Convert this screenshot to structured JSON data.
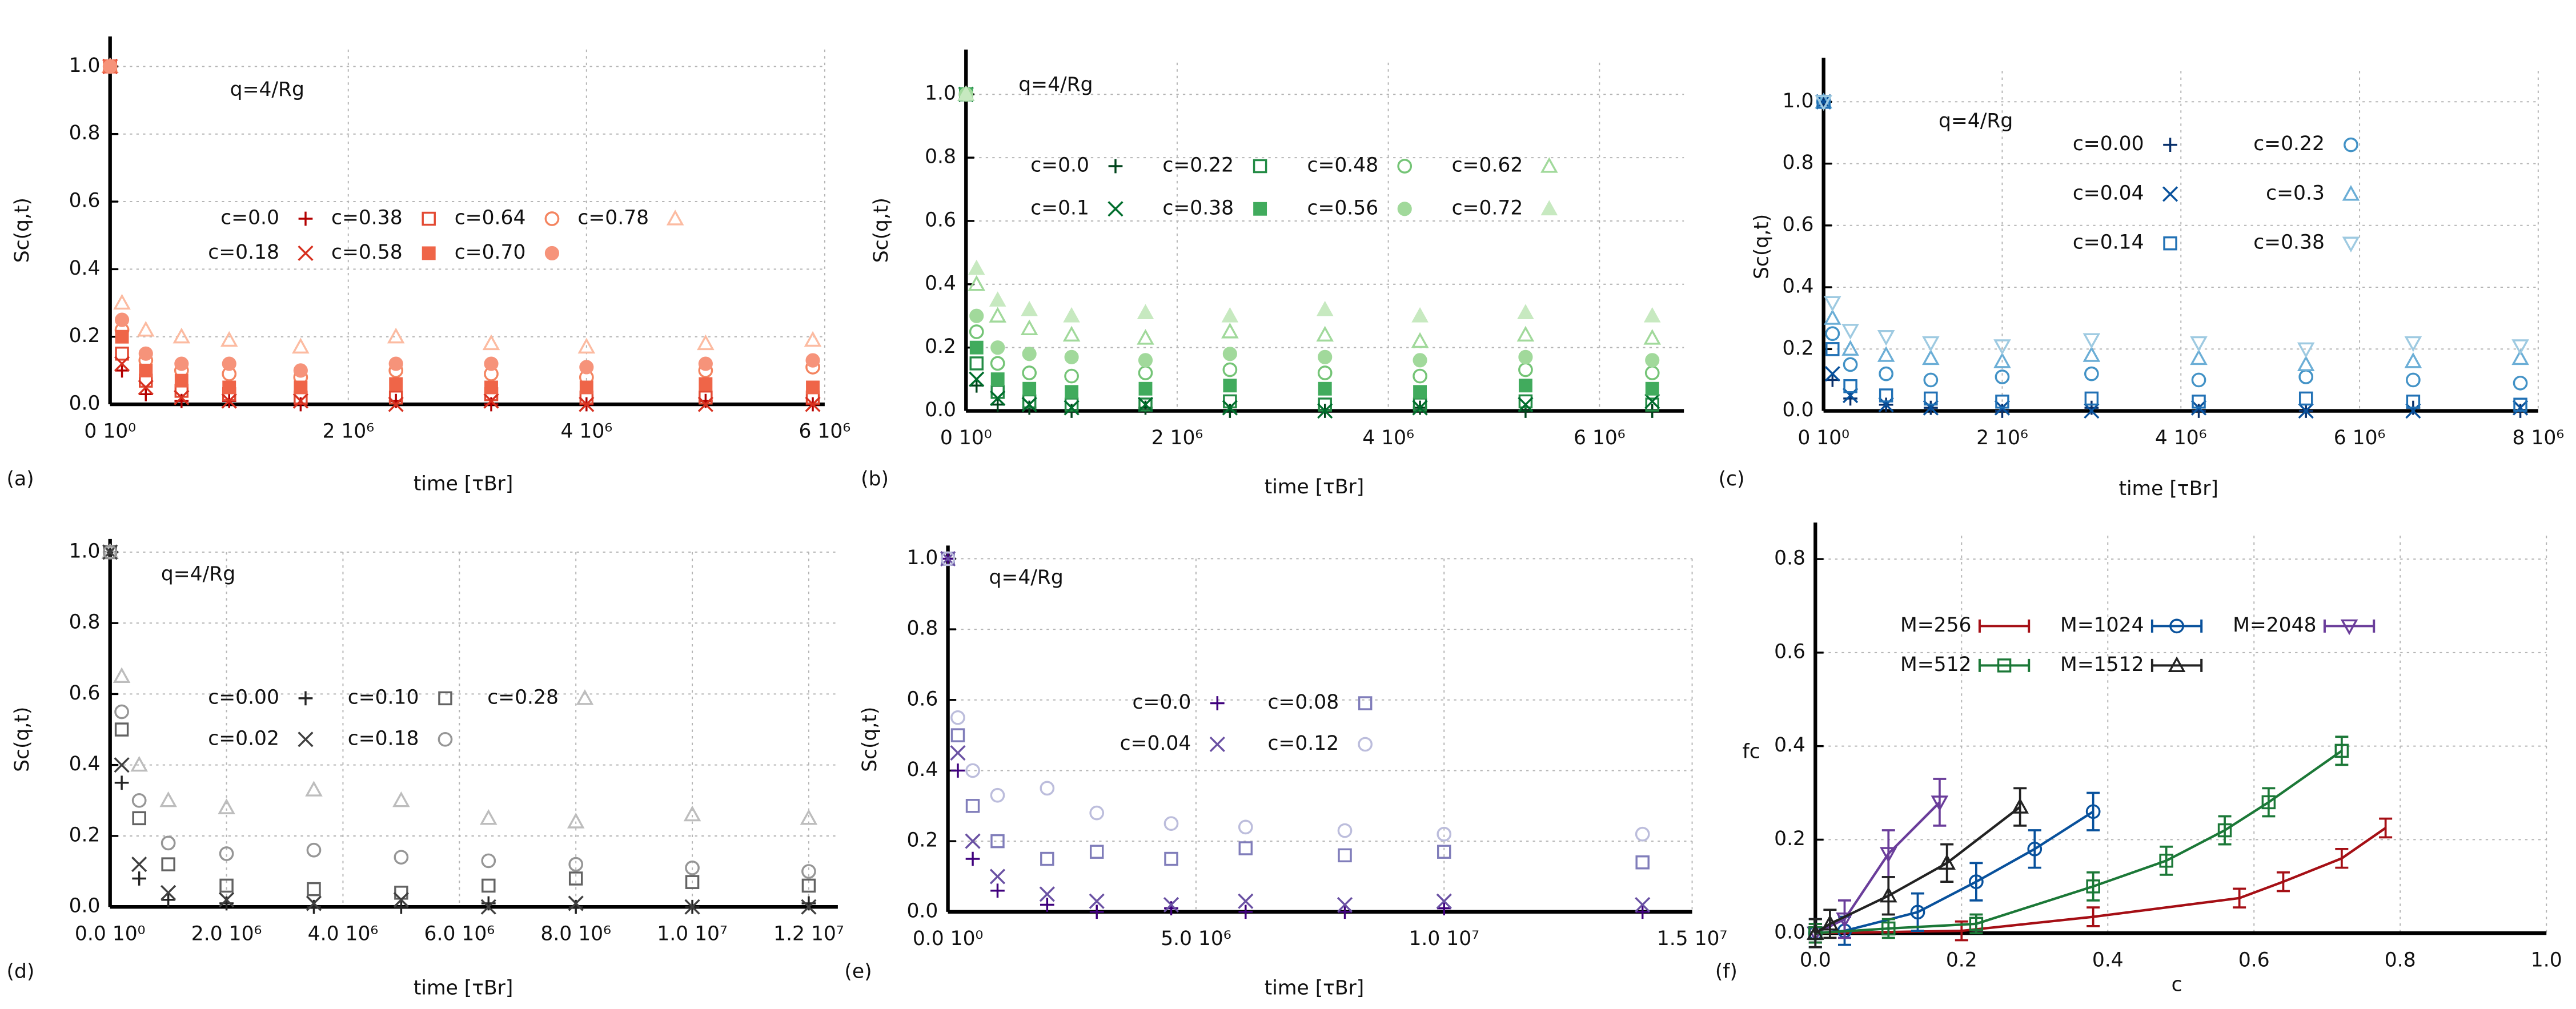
{
  "chart_data": [
    {
      "type": "scatter",
      "label": "(a)",
      "annotation": "q=4/Rg",
      "xlabel": "time [τBr]",
      "ylabel": "Sc(q,t)",
      "xlim": [
        0,
        6000000
      ],
      "ylim": [
        0,
        1.05
      ],
      "grid": true,
      "xticks": [
        {
          "value": 0,
          "label": "0 10⁰"
        },
        {
          "value": 2000000,
          "label": "2 10⁶"
        },
        {
          "value": 4000000,
          "label": "4 10⁶"
        },
        {
          "value": 6000000,
          "label": "6 10⁶"
        }
      ],
      "yticks": [
        {
          "value": 0,
          "label": "0.0"
        },
        0.2,
        0.4,
        0.6,
        0.8,
        {
          "value": 1,
          "label": "1.0"
        }
      ],
      "x": [
        0,
        100000,
        300000,
        600000,
        1000000,
        1600000,
        2400000,
        3200000,
        4000000,
        5000000,
        5900000
      ],
      "series": [
        {
          "name": "c=0.0",
          "color": "#b30000",
          "marker": "plus",
          "values": [
            1,
            0.1,
            0.03,
            0.01,
            0.01,
            0,
            0.01,
            0,
            0,
            0.01,
            0
          ]
        },
        {
          "name": "c=0.38",
          "color": "#e34a33",
          "marker": "square",
          "values": [
            1,
            0.15,
            0.07,
            0.04,
            0.03,
            0.02,
            0.02,
            0.03,
            0.02,
            0.02,
            0.02
          ]
        },
        {
          "name": "c=0.64",
          "color": "#f4845f",
          "marker": "circle",
          "values": [
            1,
            0.22,
            0.13,
            0.1,
            0.09,
            0.08,
            0.1,
            0.09,
            0.08,
            0.1,
            0.11
          ]
        },
        {
          "name": "c=0.78",
          "color": "#fcbba1",
          "marker": "triangle",
          "values": [
            1,
            0.3,
            0.22,
            0.2,
            0.19,
            0.17,
            0.2,
            0.18,
            0.17,
            0.18,
            0.19
          ]
        },
        {
          "name": "c=0.18",
          "color": "#d7301f",
          "marker": "cross",
          "values": [
            1,
            0.12,
            0.05,
            0.02,
            0.01,
            0.01,
            0,
            0.01,
            0,
            0,
            0
          ]
        },
        {
          "name": "c=0.58",
          "color": "#ef6548",
          "marker": "square-filled",
          "values": [
            1,
            0.2,
            0.1,
            0.07,
            0.05,
            0.05,
            0.06,
            0.05,
            0.05,
            0.06,
            0.05
          ]
        },
        {
          "name": "c=0.70",
          "color": "#f6937a",
          "marker": "circle-filled",
          "values": [
            1,
            0.25,
            0.15,
            0.12,
            0.12,
            0.1,
            0.12,
            0.12,
            0.11,
            0.12,
            0.13
          ]
        }
      ]
    },
    {
      "type": "scatter",
      "label": "(b)",
      "annotation": "q=4/Rg",
      "xlabel": "time [τBr]",
      "ylabel": "Sc(q,t)",
      "xlim": [
        0,
        6800000
      ],
      "ylim": [
        0,
        1.1
      ],
      "grid": true,
      "xticks": [
        {
          "value": 0,
          "label": "0 10⁰"
        },
        {
          "value": 2000000,
          "label": "2 10⁶"
        },
        {
          "value": 4000000,
          "label": "4 10⁶"
        },
        {
          "value": 6000000,
          "label": "6 10⁶"
        }
      ],
      "yticks": [
        {
          "value": 0,
          "label": "0.0"
        },
        0.2,
        0.4,
        0.6,
        0.8,
        {
          "value": 1,
          "label": "1.0"
        }
      ],
      "x": [
        0,
        100000,
        300000,
        600000,
        1000000,
        1700000,
        2500000,
        3400000,
        4300000,
        5300000,
        6500000
      ],
      "series": [
        {
          "name": "c=0.0",
          "color": "#00441b",
          "marker": "plus",
          "values": [
            1,
            0.08,
            0.02,
            0.01,
            0,
            0.01,
            0,
            0,
            0.01,
            0,
            0
          ]
        },
        {
          "name": "c=0.22",
          "color": "#238b45",
          "marker": "square",
          "values": [
            1,
            0.15,
            0.06,
            0.03,
            0.02,
            0.02,
            0.03,
            0.02,
            0.02,
            0.03,
            0.02
          ]
        },
        {
          "name": "c=0.48",
          "color": "#74c476",
          "marker": "circle",
          "values": [
            1,
            0.25,
            0.15,
            0.12,
            0.11,
            0.12,
            0.13,
            0.12,
            0.11,
            0.13,
            0.12
          ]
        },
        {
          "name": "c=0.62",
          "color": "#a1d99b",
          "marker": "triangle",
          "values": [
            1,
            0.4,
            0.3,
            0.26,
            0.24,
            0.23,
            0.25,
            0.24,
            0.22,
            0.24,
            0.23
          ]
        },
        {
          "name": "c=0.1",
          "color": "#006d2c",
          "marker": "cross",
          "values": [
            1,
            0.1,
            0.04,
            0.02,
            0.01,
            0.02,
            0.01,
            0,
            0.01,
            0.02,
            0.03
          ]
        },
        {
          "name": "c=0.38",
          "color": "#41ab5d",
          "marker": "square-filled",
          "values": [
            1,
            0.2,
            0.1,
            0.07,
            0.06,
            0.07,
            0.08,
            0.07,
            0.06,
            0.08,
            0.07
          ]
        },
        {
          "name": "c=0.56",
          "color": "#a1d99b",
          "marker": "circle-filled",
          "values": [
            1,
            0.3,
            0.2,
            0.18,
            0.17,
            0.16,
            0.18,
            0.17,
            0.16,
            0.17,
            0.16
          ]
        },
        {
          "name": "c=0.72",
          "color": "#c7e9c0",
          "marker": "triangle-filled",
          "values": [
            1,
            0.45,
            0.35,
            0.32,
            0.3,
            0.31,
            0.3,
            0.32,
            0.3,
            0.31,
            0.3
          ]
        }
      ]
    },
    {
      "type": "scatter",
      "label": "(c)",
      "annotation": "q=4/Rg",
      "xlabel": "time [τBr]",
      "ylabel": "Sc(q,t)",
      "xlim": [
        0,
        8000000
      ],
      "ylim": [
        0,
        1.1
      ],
      "grid": true,
      "xticks": [
        {
          "value": 0,
          "label": "0 10⁰"
        },
        {
          "value": 2000000,
          "label": "2 10⁶"
        },
        {
          "value": 4000000,
          "label": "4 10⁶"
        },
        {
          "value": 6000000,
          "label": "6 10⁶"
        },
        {
          "value": 8000000,
          "label": "8 10⁶"
        }
      ],
      "yticks": [
        {
          "value": 0,
          "label": "0.0"
        },
        0.2,
        0.4,
        0.6,
        0.8,
        {
          "value": 1,
          "label": "1.0"
        }
      ],
      "x": [
        0,
        100000,
        300000,
        700000,
        1200000,
        2000000,
        3000000,
        4200000,
        5400000,
        6600000,
        7800000
      ],
      "series": [
        {
          "name": "c=0.00",
          "color": "#08306b",
          "marker": "plus",
          "values": [
            1,
            0.1,
            0.04,
            0.02,
            0.01,
            0,
            0.01,
            0,
            0,
            0.01,
            0
          ]
        },
        {
          "name": "c=0.22",
          "color": "#4292c6",
          "marker": "circle",
          "values": [
            1,
            0.25,
            0.15,
            0.12,
            0.1,
            0.11,
            0.12,
            0.1,
            0.11,
            0.1,
            0.09
          ]
        },
        {
          "name": "c=0.04",
          "color": "#08519c",
          "marker": "cross",
          "values": [
            1,
            0.12,
            0.05,
            0.02,
            0.01,
            0.01,
            0,
            0.01,
            0,
            0,
            0.01
          ]
        },
        {
          "name": "c=0.3",
          "color": "#6baed6",
          "marker": "triangle",
          "values": [
            1,
            0.3,
            0.2,
            0.18,
            0.17,
            0.16,
            0.18,
            0.17,
            0.15,
            0.16,
            0.17
          ]
        },
        {
          "name": "c=0.14",
          "color": "#2171b5",
          "marker": "square",
          "values": [
            1,
            0.2,
            0.08,
            0.05,
            0.04,
            0.03,
            0.04,
            0.03,
            0.04,
            0.03,
            0.02
          ]
        },
        {
          "name": "c=0.38",
          "color": "#9ecae1",
          "marker": "triangle-down",
          "values": [
            1,
            0.35,
            0.26,
            0.24,
            0.22,
            0.21,
            0.23,
            0.22,
            0.2,
            0.22,
            0.21
          ]
        }
      ]
    },
    {
      "type": "scatter",
      "label": "(d)",
      "annotation": "q=4/Rg",
      "xlabel": "time [τBr]",
      "ylabel": "Sc(q,t)",
      "xlim": [
        0,
        12500000
      ],
      "ylim": [
        0,
        1
      ],
      "grid": true,
      "xticks": [
        {
          "value": 0,
          "label": "0.0 10⁰"
        },
        {
          "value": 2000000,
          "label": "2.0 10⁶"
        },
        {
          "value": 4000000,
          "label": "4.0 10⁶"
        },
        {
          "value": 6000000,
          "label": "6.0 10⁶"
        },
        {
          "value": 8000000,
          "label": "8.0 10⁶"
        },
        {
          "value": 10000000,
          "label": "1.0 10⁷"
        },
        {
          "value": 12000000,
          "label": "1.2 10⁷"
        }
      ],
      "yticks": [
        {
          "value": 0,
          "label": "0.0"
        },
        0.2,
        0.4,
        0.6,
        0.8,
        {
          "value": 1,
          "label": "1.0"
        }
      ],
      "x": [
        0,
        200000,
        500000,
        1000000,
        2000000,
        3500000,
        5000000,
        6500000,
        8000000,
        10000000,
        12000000
      ],
      "series": [
        {
          "name": "c=0.00",
          "color": "#252525",
          "marker": "plus",
          "values": [
            1,
            0.35,
            0.08,
            0.02,
            0.01,
            0,
            0,
            0.01,
            0,
            0,
            0.01
          ]
        },
        {
          "name": "c=0.10",
          "color": "#636363",
          "marker": "square",
          "values": [
            1,
            0.5,
            0.25,
            0.12,
            0.06,
            0.05,
            0.04,
            0.06,
            0.08,
            0.07,
            0.06
          ]
        },
        {
          "name": "c=0.28",
          "color": "#bdbdbd",
          "marker": "triangle",
          "values": [
            1,
            0.65,
            0.4,
            0.3,
            0.28,
            0.33,
            0.3,
            0.25,
            0.24,
            0.26,
            0.25
          ]
        },
        {
          "name": "c=0.02",
          "color": "#404040",
          "marker": "cross",
          "values": [
            1,
            0.4,
            0.12,
            0.04,
            0.02,
            0.01,
            0.02,
            0,
            0.01,
            0,
            0
          ]
        },
        {
          "name": "c=0.18",
          "color": "#969696",
          "marker": "circle",
          "values": [
            1,
            0.55,
            0.3,
            0.18,
            0.15,
            0.16,
            0.14,
            0.13,
            0.12,
            0.11,
            0.1
          ]
        }
      ]
    },
    {
      "type": "scatter",
      "label": "(e)",
      "annotation": "q=4/Rg",
      "xlabel": "time [τBr]",
      "ylabel": "Sc(q,t)",
      "xlim": [
        0,
        15000000
      ],
      "ylim": [
        0,
        1
      ],
      "grid": true,
      "xticks": [
        {
          "value": 0,
          "label": "0.0 10⁰"
        },
        {
          "value": 5000000,
          "label": "5.0 10⁶"
        },
        {
          "value": 10000000,
          "label": "1.0 10⁷"
        },
        {
          "value": 15000000,
          "label": "1.5 10⁷"
        }
      ],
      "yticks": [
        {
          "value": 0,
          "label": "0.0"
        },
        0.2,
        0.4,
        0.6,
        0.8,
        {
          "value": 1,
          "label": "1.0"
        }
      ],
      "x": [
        0,
        200000,
        500000,
        1000000,
        2000000,
        3000000,
        4500000,
        6000000,
        8000000,
        10000000,
        14000000
      ],
      "series": [
        {
          "name": "c=0.0",
          "color": "#3f007d",
          "marker": "plus",
          "values": [
            1,
            0.4,
            0.15,
            0.06,
            0.02,
            0,
            0.01,
            0,
            0,
            0.01,
            0
          ]
        },
        {
          "name": "c=0.08",
          "color": "#807dba",
          "marker": "square",
          "values": [
            1,
            0.5,
            0.3,
            0.2,
            0.15,
            0.17,
            0.15,
            0.18,
            0.16,
            0.17,
            0.14
          ]
        },
        {
          "name": "c=0.04",
          "color": "#6a51a3",
          "marker": "cross",
          "values": [
            1,
            0.45,
            0.2,
            0.1,
            0.05,
            0.03,
            0.02,
            0.03,
            0.02,
            0.03,
            0.02
          ]
        },
        {
          "name": "c=0.12",
          "color": "#bcbddc",
          "marker": "circle",
          "values": [
            1,
            0.55,
            0.4,
            0.33,
            0.35,
            0.28,
            0.25,
            0.24,
            0.23,
            0.22,
            0.22
          ]
        }
      ]
    },
    {
      "type": "line",
      "label": "(f)",
      "xlabel": "c",
      "ylabel": "fc",
      "xlim": [
        0,
        1
      ],
      "ylim": [
        0,
        0.85
      ],
      "grid": true,
      "xticks": [
        {
          "value": 0,
          "label": "0.0"
        },
        0.2,
        0.4,
        0.6,
        0.8,
        {
          "value": 1,
          "label": "1.0"
        }
      ],
      "yticks": [
        {
          "value": 0,
          "label": "0.0"
        },
        0.2,
        0.4,
        0.6,
        0.8
      ],
      "series": [
        {
          "name": "M=256",
          "color": "#a50f15",
          "marker": "none",
          "x": [
            0,
            0.2,
            0.38,
            0.58,
            0.64,
            0.72,
            0.78
          ],
          "values": [
            0,
            0.005,
            0.035,
            0.075,
            0.11,
            0.16,
            0.225
          ],
          "errors": [
            0.02,
            0.02,
            0.02,
            0.02,
            0.02,
            0.02,
            0.02
          ]
        },
        {
          "name": "M=1024",
          "color": "#08519c",
          "marker": "circle",
          "x": [
            0,
            0.04,
            0.14,
            0.22,
            0.3,
            0.38
          ],
          "values": [
            0,
            0.005,
            0.045,
            0.11,
            0.18,
            0.26
          ],
          "errors": [
            0.03,
            0.03,
            0.04,
            0.04,
            0.04,
            0.04
          ]
        },
        {
          "name": "M=2048",
          "color": "#6a3d9a",
          "marker": "triangle-down",
          "x": [
            0,
            0.04,
            0.1,
            0.17
          ],
          "values": [
            0,
            0.03,
            0.17,
            0.28
          ],
          "errors": [
            0.02,
            0.04,
            0.05,
            0.05
          ]
        },
        {
          "name": "M=512",
          "color": "#1b7837",
          "marker": "square",
          "x": [
            0,
            0.1,
            0.22,
            0.38,
            0.48,
            0.56,
            0.62,
            0.72
          ],
          "values": [
            0,
            0.01,
            0.02,
            0.1,
            0.155,
            0.22,
            0.28,
            0.39
          ],
          "errors": [
            0.02,
            0.02,
            0.02,
            0.03,
            0.03,
            0.03,
            0.03,
            0.03
          ]
        },
        {
          "name": "M=1512",
          "color": "#222222",
          "marker": "triangle",
          "x": [
            0,
            0.02,
            0.1,
            0.18,
            0.28
          ],
          "values": [
            0,
            0.02,
            0.08,
            0.15,
            0.27
          ],
          "errors": [
            0.03,
            0.03,
            0.04,
            0.04,
            0.04
          ]
        }
      ]
    }
  ]
}
